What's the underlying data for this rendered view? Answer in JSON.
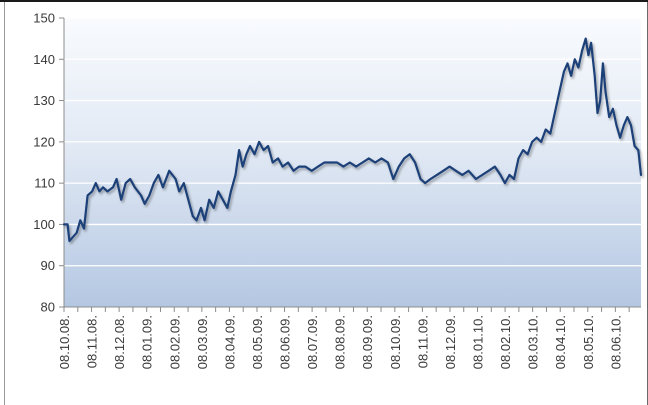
{
  "chart_data": {
    "type": "line",
    "title": "",
    "xlabel": "",
    "ylabel": "",
    "ylim": [
      80,
      150
    ],
    "yticks": [
      80,
      90,
      100,
      110,
      120,
      130,
      140,
      150
    ],
    "grid": "horizontal",
    "legend": "none",
    "x_tick_labels": [
      "08.10.08.",
      "08.11.08.",
      "08.12.08.",
      "08.01.09.",
      "08.02.09.",
      "08.03.09.",
      "08.04.09.",
      "08.05.09.",
      "08.06.09.",
      "08.07.09.",
      "08.08.09.",
      "08.09.09.",
      "08.10.09.",
      "08.11.09.",
      "08.12.09.",
      "08.01.10.",
      "08.02.10.",
      "08.03.10.",
      "08.04.10.",
      "08.05.10.",
      "08.06.10."
    ],
    "series": [
      {
        "color": "#1f3f78",
        "points": [
          [
            "2008-10-08",
            100
          ],
          [
            "2008-10-12",
            100
          ],
          [
            "2008-10-14",
            96
          ],
          [
            "2008-10-18",
            97
          ],
          [
            "2008-10-22",
            98
          ],
          [
            "2008-10-26",
            101
          ],
          [
            "2008-10-30",
            99
          ],
          [
            "2008-11-03",
            107
          ],
          [
            "2008-11-08",
            108
          ],
          [
            "2008-11-12",
            110
          ],
          [
            "2008-11-16",
            108
          ],
          [
            "2008-11-20",
            109
          ],
          [
            "2008-11-25",
            108
          ],
          [
            "2008-12-01",
            109
          ],
          [
            "2008-12-05",
            111
          ],
          [
            "2008-12-10",
            106
          ],
          [
            "2008-12-15",
            110
          ],
          [
            "2008-12-20",
            111
          ],
          [
            "2008-12-25",
            109
          ],
          [
            "2009-01-01",
            107
          ],
          [
            "2009-01-05",
            105
          ],
          [
            "2009-01-10",
            107
          ],
          [
            "2009-01-15",
            110
          ],
          [
            "2009-01-20",
            112
          ],
          [
            "2009-01-25",
            109
          ],
          [
            "2009-02-01",
            113
          ],
          [
            "2009-02-08",
            111
          ],
          [
            "2009-02-12",
            108
          ],
          [
            "2009-02-17",
            110
          ],
          [
            "2009-02-22",
            106
          ],
          [
            "2009-02-27",
            102
          ],
          [
            "2009-03-03",
            101
          ],
          [
            "2009-03-08",
            104
          ],
          [
            "2009-03-12",
            101
          ],
          [
            "2009-03-17",
            106
          ],
          [
            "2009-03-22",
            104
          ],
          [
            "2009-03-27",
            108
          ],
          [
            "2009-04-01",
            106
          ],
          [
            "2009-04-06",
            104
          ],
          [
            "2009-04-10",
            108
          ],
          [
            "2009-04-15",
            112
          ],
          [
            "2009-04-19",
            118
          ],
          [
            "2009-04-23",
            114
          ],
          [
            "2009-04-27",
            117
          ],
          [
            "2009-05-01",
            119
          ],
          [
            "2009-05-06",
            117
          ],
          [
            "2009-05-11",
            120
          ],
          [
            "2009-05-16",
            118
          ],
          [
            "2009-05-21",
            119
          ],
          [
            "2009-05-26",
            115
          ],
          [
            "2009-06-01",
            116
          ],
          [
            "2009-06-06",
            114
          ],
          [
            "2009-06-12",
            115
          ],
          [
            "2009-06-18",
            113
          ],
          [
            "2009-06-24",
            114
          ],
          [
            "2009-07-01",
            114
          ],
          [
            "2009-07-08",
            113
          ],
          [
            "2009-07-15",
            114
          ],
          [
            "2009-07-22",
            115
          ],
          [
            "2009-07-29",
            115
          ],
          [
            "2009-08-05",
            115
          ],
          [
            "2009-08-12",
            114
          ],
          [
            "2009-08-19",
            115
          ],
          [
            "2009-08-26",
            114
          ],
          [
            "2009-09-02",
            115
          ],
          [
            "2009-09-09",
            116
          ],
          [
            "2009-09-16",
            115
          ],
          [
            "2009-09-23",
            116
          ],
          [
            "2009-09-30",
            115
          ],
          [
            "2009-10-06",
            111
          ],
          [
            "2009-10-12",
            114
          ],
          [
            "2009-10-18",
            116
          ],
          [
            "2009-10-24",
            117
          ],
          [
            "2009-10-30",
            115
          ],
          [
            "2009-11-05",
            111
          ],
          [
            "2009-11-10",
            110
          ],
          [
            "2009-11-16",
            111
          ],
          [
            "2009-11-23",
            112
          ],
          [
            "2009-11-30",
            113
          ],
          [
            "2009-12-07",
            114
          ],
          [
            "2009-12-14",
            113
          ],
          [
            "2009-12-21",
            112
          ],
          [
            "2009-12-28",
            113
          ],
          [
            "2010-01-05",
            111
          ],
          [
            "2010-01-12",
            112
          ],
          [
            "2010-01-19",
            113
          ],
          [
            "2010-01-26",
            114
          ],
          [
            "2010-02-01",
            112
          ],
          [
            "2010-02-06",
            110
          ],
          [
            "2010-02-11",
            112
          ],
          [
            "2010-02-16",
            111
          ],
          [
            "2010-02-21",
            116
          ],
          [
            "2010-02-26",
            118
          ],
          [
            "2010-03-03",
            117
          ],
          [
            "2010-03-08",
            120
          ],
          [
            "2010-03-13",
            121
          ],
          [
            "2010-03-18",
            120
          ],
          [
            "2010-03-23",
            123
          ],
          [
            "2010-03-28",
            122
          ],
          [
            "2010-04-02",
            127
          ],
          [
            "2010-04-07",
            132
          ],
          [
            "2010-04-12",
            137
          ],
          [
            "2010-04-16",
            139
          ],
          [
            "2010-04-20",
            136
          ],
          [
            "2010-04-24",
            140
          ],
          [
            "2010-04-28",
            138
          ],
          [
            "2010-05-02",
            142
          ],
          [
            "2010-05-06",
            145
          ],
          [
            "2010-05-09",
            141
          ],
          [
            "2010-05-12",
            144
          ],
          [
            "2010-05-16",
            136
          ],
          [
            "2010-05-19",
            127
          ],
          [
            "2010-05-22",
            130
          ],
          [
            "2010-05-25",
            139
          ],
          [
            "2010-05-28",
            132
          ],
          [
            "2010-06-01",
            126
          ],
          [
            "2010-06-05",
            128
          ],
          [
            "2010-06-09",
            124
          ],
          [
            "2010-06-13",
            121
          ],
          [
            "2010-06-17",
            124
          ],
          [
            "2010-06-21",
            126
          ],
          [
            "2010-06-25",
            124
          ],
          [
            "2010-06-29",
            119
          ],
          [
            "2010-07-03",
            118
          ],
          [
            "2010-07-06",
            112
          ]
        ]
      }
    ]
  }
}
